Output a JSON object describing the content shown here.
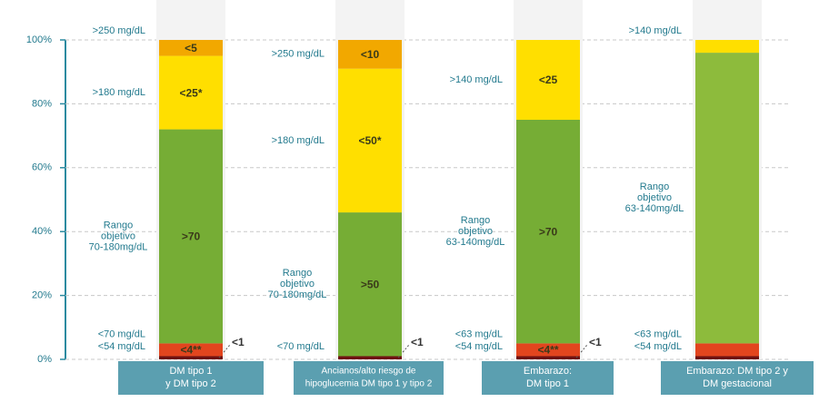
{
  "chart_data": {
    "type": "stacked_bar",
    "ylim": [
      0,
      100
    ],
    "yticks": [
      {
        "value": 0,
        "label": "0%"
      },
      {
        "value": 20,
        "label": "20%"
      },
      {
        "value": 40,
        "label": "40%"
      },
      {
        "value": 60,
        "label": "60%"
      },
      {
        "value": 80,
        "label": "80%"
      },
      {
        "value": 100,
        "label": "100%"
      }
    ],
    "grid": true,
    "bars": [
      {
        "label": [
          "DM tipo 1",
          "y DM tipo 2"
        ],
        "segments": [
          {
            "value": 1,
            "color": "#6e1010",
            "text": "<1",
            "side": "<54 mg/dL"
          },
          {
            "value": 4,
            "color": "#e2451e",
            "text": "<4**",
            "side": "<70 mg/dL"
          },
          {
            "value": 67,
            "color": "#76ad35",
            "text": ">70",
            "side": [
              "Rango",
              "objetivo",
              "70-180mg/dL"
            ]
          },
          {
            "value": 23,
            "color": "#ffdf00",
            "text": "<25*",
            "side": ">180 mg/dL"
          },
          {
            "value": 5,
            "color": "#f2a800",
            "text": "<5",
            "side": ">250 mg/dL"
          }
        ]
      },
      {
        "label": [
          "Ancianos/alto riesgo de",
          "hipoglucemia DM tipo 1 y tipo 2"
        ],
        "segments": [
          {
            "value": 1,
            "color": "#6e1010",
            "text": "<1",
            "side": "<70 mg/dL"
          },
          {
            "value": 45,
            "color": "#76ad35",
            "text": ">50",
            "side": [
              "Rango",
              "objetivo",
              "70-180mg/dL"
            ]
          },
          {
            "value": 45,
            "color": "#ffdf00",
            "text": "<50*",
            "side": ">180 mg/dL"
          },
          {
            "value": 9,
            "color": "#f2a800",
            "text": "<10",
            "side": ">250 mg/dL"
          }
        ]
      },
      {
        "label": [
          "Embarazo:",
          "DM tipo 1"
        ],
        "segments": [
          {
            "value": 1,
            "color": "#6e1010",
            "text": "<1",
            "side": "<54 mg/dL"
          },
          {
            "value": 4,
            "color": "#e2451e",
            "text": "<4**",
            "side": "<63 mg/dL"
          },
          {
            "value": 70,
            "color": "#76ad35",
            "text": ">70",
            "side": [
              "Rango",
              "objetivo",
              "63-140mg/dL"
            ]
          },
          {
            "value": 25,
            "color": "#ffdf00",
            "text": "<25",
            "side": ">140 mg/dL"
          }
        ]
      },
      {
        "label": [
          "Embarazo: DM tipo 2 y",
          "DM gestacional"
        ],
        "segments": [
          {
            "value": 1,
            "color": "#6e1010",
            "side": "<54 mg/dL"
          },
          {
            "value": 4,
            "color": "#e2451e",
            "side": "<63 mg/dL"
          },
          {
            "value": 91,
            "color": "#8dbb3c",
            "side": [
              "Rango",
              "objetivo",
              "63-140mg/dL"
            ]
          },
          {
            "value": 4,
            "color": "#ffdf00",
            "side": ">140 mg/dL"
          }
        ]
      }
    ]
  }
}
